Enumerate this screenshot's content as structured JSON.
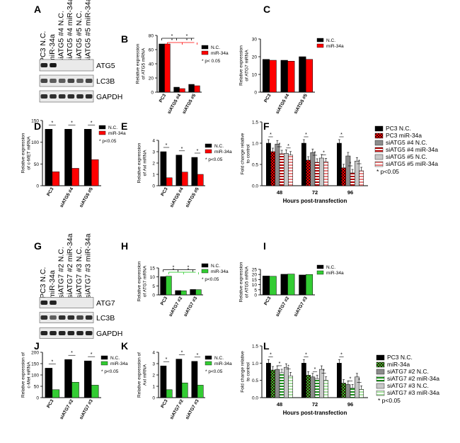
{
  "figure": {
    "panel_letters": [
      "A",
      "B",
      "C",
      "D",
      "E",
      "F",
      "G",
      "H",
      "I",
      "J",
      "K",
      "L"
    ]
  },
  "colors": {
    "black": "#000000",
    "red": "#ff0000",
    "dark_red": "#b40000",
    "green": "#33cc33",
    "dark_green": "#1a8f1a",
    "gray": "#8c8c8c",
    "light_gray": "#c8c8c8",
    "salmon": "#e88080",
    "pale_green": "#a8e0a0"
  },
  "blots": [
    {
      "panel": "A",
      "lanes": [
        "PC3 N.C.",
        "miR-34a",
        "siATG5 #4 N.C.",
        "siATG5 #4 miR-34a",
        "siATG5 #5 N.C.",
        "siATG5 #5 miR-34a"
      ],
      "bands": [
        {
          "name": "ATG5",
          "present": [
            1,
            1,
            0,
            0,
            0,
            0
          ],
          "intensity": [
            0.85,
            0.9,
            0,
            0,
            0,
            0
          ]
        },
        {
          "name": "LC3B",
          "present": [
            1,
            1,
            1,
            1,
            1,
            1
          ],
          "intensity": [
            0.7,
            0.6,
            0.6,
            0.7,
            0.6,
            0.7
          ]
        },
        {
          "name": "GAPDH",
          "present": [
            1,
            1,
            1,
            1,
            1,
            1
          ],
          "intensity": [
            0.8,
            0.8,
            0.8,
            0.8,
            0.8,
            0.8
          ]
        }
      ]
    },
    {
      "panel": "G",
      "lanes": [
        "PC3 N.C.",
        "miR-34a",
        "siATG7 #2 N.C.",
        "siATG7 #2 miR-34a",
        "siATG7 #3 N.C.",
        "siATG7 #3 miR-34a"
      ],
      "bands": [
        {
          "name": "ATG7",
          "present": [
            1,
            1,
            0,
            0,
            0,
            0
          ],
          "intensity": [
            0.85,
            0.85,
            0,
            0,
            0,
            0
          ]
        },
        {
          "name": "LC3B",
          "present": [
            1,
            1,
            1,
            1,
            1,
            1
          ],
          "intensity": [
            0.8,
            0.6,
            0.8,
            0.8,
            0.7,
            0.8
          ]
        },
        {
          "name": "GAPDH",
          "present": [
            1,
            1,
            1,
            1,
            1,
            1
          ],
          "intensity": [
            0.85,
            0.85,
            0.85,
            0.85,
            0.85,
            0.85
          ]
        }
      ]
    }
  ],
  "chart_data": [
    {
      "panel": "B",
      "type": "bar",
      "categories": [
        "PC3",
        "siATG5 #4",
        "siATG5 #5"
      ],
      "ylabel": "Relative expression\nof ATG5 mRNA",
      "ylim": [
        0,
        80
      ],
      "yticks": [
        0,
        20,
        40,
        60,
        80
      ],
      "series": [
        {
          "name": "N.C.",
          "color": "black",
          "values": [
            68,
            7,
            11
          ]
        },
        {
          "name": "miR-34a",
          "color": "red",
          "values": [
            68,
            5,
            9
          ]
        }
      ],
      "legend_note": "* p< 0.05",
      "brackets": [
        {
          "color": "black",
          "from": 0,
          "to": 2,
          "level": 76
        },
        {
          "color": "red",
          "from": 0,
          "to": 2,
          "level": 70
        }
      ]
    },
    {
      "panel": "C",
      "type": "bar",
      "categories": [
        "PC3",
        "siATG5 #4",
        "siATG5 #5"
      ],
      "ylabel": "Relative expression\nof ATG7 mRNA",
      "ylim": [
        0,
        30
      ],
      "yticks": [
        0,
        10,
        20,
        30
      ],
      "series": [
        {
          "name": "N.C.",
          "color": "black",
          "values": [
            18.5,
            18,
            20
          ]
        },
        {
          "name": "miR-34a",
          "color": "red",
          "values": [
            18,
            17.5,
            18.5
          ]
        }
      ],
      "legend_note": ""
    },
    {
      "panel": "D",
      "type": "bar",
      "categories": [
        "PC3",
        "siATG5 #4",
        "siATG5 #5"
      ],
      "ylabel": "Relative expression\nof c-MET mRNA",
      "ylim": [
        0,
        150
      ],
      "yticks": [
        0,
        50,
        100,
        150
      ],
      "series": [
        {
          "name": "N.C.",
          "color": "black",
          "values": [
            130,
            130,
            130
          ]
        },
        {
          "name": "miR-34a",
          "color": "red",
          "values": [
            32,
            40,
            60
          ]
        }
      ],
      "legend_note": "* p<0.05",
      "pair_stars": true
    },
    {
      "panel": "E",
      "type": "bar",
      "categories": [
        "PC3",
        "siATG5 #4",
        "siATG5 #5"
      ],
      "ylabel": "Relative expression\nof Axl mRNA",
      "ylim": [
        0,
        4
      ],
      "yticks": [
        0,
        1,
        2,
        3,
        4
      ],
      "series": [
        {
          "name": "N.C.",
          "color": "black",
          "values": [
            3.0,
            2.7,
            2.5
          ]
        },
        {
          "name": "miR-34a",
          "color": "red",
          "values": [
            0.7,
            1.2,
            1.0
          ]
        }
      ],
      "legend_note": "* p<0.05",
      "pair_stars": true
    },
    {
      "panel": "F",
      "type": "bar",
      "categories": [
        "48",
        "72",
        "96"
      ],
      "xlabel": "Hours post-transfection",
      "ylabel": "Fold change relative\nto control",
      "ylim": [
        0,
        1.5
      ],
      "yticks": [
        "0.0",
        "0.5",
        "1.0",
        "1.5"
      ],
      "series": [
        {
          "name": "PC3 N.C.",
          "color": "black",
          "pattern": "solid",
          "values": [
            1.0,
            1.0,
            1.0
          ]
        },
        {
          "name": "PC3 miR-34a",
          "color": "red",
          "pattern": "check",
          "values": [
            0.8,
            0.6,
            0.42
          ]
        },
        {
          "name": "siATG5 #4 N.C.",
          "color": "gray",
          "pattern": "solid",
          "values": [
            0.98,
            0.78,
            0.7
          ]
        },
        {
          "name": "siATG5 #4 miR-34a",
          "color": "dark_red",
          "pattern": "hstripe",
          "values": [
            0.75,
            0.55,
            0.3
          ]
        },
        {
          "name": "siATG5 #5 N.C.",
          "color": "light_gray",
          "pattern": "solid",
          "values": [
            0.76,
            0.65,
            0.58
          ]
        },
        {
          "name": "siATG5 #5 miR-34a",
          "color": "salmon",
          "pattern": "hstripe",
          "values": [
            0.72,
            0.56,
            0.35
          ]
        }
      ],
      "legend_note": "* p<0.05"
    },
    {
      "panel": "H",
      "type": "bar",
      "categories": [
        "PC3",
        "siATG7 #2",
        "siATG7 #3"
      ],
      "ylabel": "Relative expression\nof ATG7 mRNA",
      "ylim": [
        0,
        15
      ],
      "yticks": [
        0,
        5,
        10,
        15
      ],
      "series": [
        {
          "name": "N.C.",
          "color": "black",
          "values": [
            10.2,
            2.4,
            3.0
          ]
        },
        {
          "name": "miR-34a",
          "color": "green",
          "values": [
            10.4,
            2.3,
            2.9
          ]
        }
      ],
      "legend_note": "* p<0.05",
      "brackets": [
        {
          "color": "black",
          "from": 0,
          "to": 2,
          "level": 14
        },
        {
          "color": "green",
          "from": 0,
          "to": 2,
          "level": 12.6
        }
      ]
    },
    {
      "panel": "I",
      "type": "bar",
      "categories": [
        "PC3",
        "siATG7 #2",
        "siATG7 #3"
      ],
      "ylabel": "Relative expression\nof ATG5 mRNA",
      "ylim": [
        0,
        25
      ],
      "yticks": [
        0,
        5,
        10,
        15,
        20,
        25
      ],
      "series": [
        {
          "name": "N.C.",
          "color": "black",
          "values": [
            18.5,
            20.2,
            19.5
          ]
        },
        {
          "name": "miR-34a",
          "color": "green",
          "values": [
            18.2,
            20.4,
            20.0
          ]
        }
      ],
      "legend_note": ""
    },
    {
      "panel": "J",
      "type": "bar",
      "categories": [
        "PC3",
        "siATG7 #2",
        "siATG7 #3"
      ],
      "ylabel": "Relative expression of\nc-Met mRNA",
      "ylim": [
        0,
        200
      ],
      "yticks": [
        0,
        50,
        100,
        150,
        200
      ],
      "series": [
        {
          "name": "N.C.",
          "color": "black",
          "values": [
            130,
            168,
            162
          ]
        },
        {
          "name": "miR-34a",
          "color": "green",
          "values": [
            35,
            68,
            55
          ]
        }
      ],
      "legend_note": "* p<0.05",
      "pair_stars": true
    },
    {
      "panel": "K",
      "type": "bar",
      "categories": [
        "PC3",
        "siATG7 #2",
        "siATG7 #3"
      ],
      "ylabel": "Relative expression of\nAxl mRNA",
      "ylim": [
        0,
        4
      ],
      "yticks": [
        0,
        1,
        2,
        3,
        4
      ],
      "series": [
        {
          "name": "N.C.",
          "color": "black",
          "values": [
            2.8,
            3.4,
            3.2
          ]
        },
        {
          "name": "miR-34a",
          "color": "green",
          "values": [
            0.7,
            1.3,
            1.1
          ]
        }
      ],
      "legend_note": "* p<0.05",
      "pair_stars": true
    },
    {
      "panel": "L",
      "type": "bar",
      "categories": [
        "48",
        "72",
        "96"
      ],
      "xlabel": "Hours post-transfection",
      "ylabel": "Fold change relative\nto control",
      "ylim": [
        0,
        1.5
      ],
      "yticks": [
        "0.0",
        "0.5",
        "1.0",
        "1.5"
      ],
      "series": [
        {
          "name": "PC3 N.C.",
          "color": "black",
          "pattern": "solid",
          "values": [
            1.0,
            1.0,
            1.0
          ]
        },
        {
          "name": "miR-34a",
          "color": "green",
          "pattern": "check",
          "values": [
            0.8,
            0.65,
            0.42
          ]
        },
        {
          "name": "siATG7 #2 N.C.",
          "color": "gray",
          "pattern": "solid",
          "values": [
            0.82,
            0.6,
            0.38
          ]
        },
        {
          "name": "siATG7 #2 miR-34a",
          "color": "dark_green",
          "pattern": "hstripe",
          "values": [
            0.72,
            0.55,
            0.28
          ]
        },
        {
          "name": "siATG7 #3 N.C.",
          "color": "light_gray",
          "pattern": "solid",
          "values": [
            0.88,
            0.82,
            0.6
          ]
        },
        {
          "name": "siATG7 #3 miR-34a",
          "color": "pale_green",
          "pattern": "hstripe",
          "values": [
            0.63,
            0.5,
            0.24
          ]
        }
      ],
      "legend_note": "* p<0.05"
    }
  ]
}
